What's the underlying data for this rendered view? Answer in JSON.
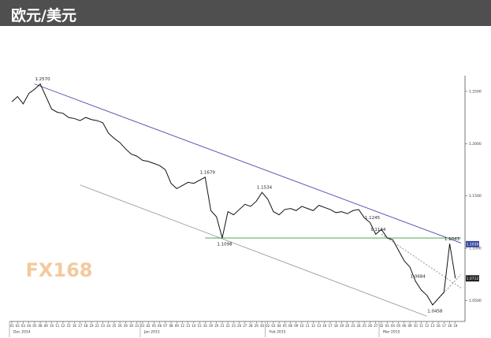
{
  "chart_data": {
    "type": "line",
    "title": "欧元/美元",
    "watermark": "FX168",
    "x": [
      0,
      1,
      2,
      3,
      4,
      5,
      6,
      7,
      8,
      9,
      10,
      11,
      12,
      13,
      14,
      15,
      16,
      17,
      18,
      19,
      20,
      21,
      22,
      23,
      24,
      25,
      26,
      27,
      28,
      29,
      30,
      31,
      32,
      33,
      34,
      35,
      36,
      37,
      38,
      39,
      40,
      41,
      42,
      43,
      44,
      45,
      46,
      47,
      48,
      49,
      50,
      51,
      52,
      53,
      54,
      55,
      56,
      57,
      58,
      59,
      60,
      61,
      62,
      63,
      64,
      65,
      66,
      67,
      68,
      69,
      70,
      71,
      72,
      73,
      74,
      75,
      76,
      77,
      78
    ],
    "series": [
      {
        "name": "EUR/USD",
        "color": "#111111",
        "values": [
          1.24,
          1.245,
          1.238,
          1.248,
          1.252,
          1.257,
          1.245,
          1.233,
          1.23,
          1.229,
          1.225,
          1.224,
          1.222,
          1.225,
          1.223,
          1.222,
          1.22,
          1.21,
          1.205,
          1.201,
          1.195,
          1.19,
          1.188,
          1.184,
          1.183,
          1.181,
          1.179,
          1.175,
          1.162,
          1.157,
          1.16,
          1.163,
          1.162,
          1.165,
          1.1679,
          1.136,
          1.13,
          1.1098,
          1.135,
          1.132,
          1.137,
          1.142,
          1.14,
          1.145,
          1.1534,
          1.147,
          1.135,
          1.132,
          1.137,
          1.138,
          1.136,
          1.14,
          1.138,
          1.136,
          1.141,
          1.139,
          1.137,
          1.134,
          1.135,
          1.133,
          1.136,
          1.137,
          1.129,
          1.1245,
          1.1134,
          1.118,
          1.11,
          1.108,
          1.098,
          1.088,
          1.082,
          1.0684,
          1.06,
          1.055,
          1.0458,
          1.052,
          1.058,
          1.1043,
          1.0712
        ]
      }
    ],
    "xlim": [
      0,
      79
    ],
    "ylim": [
      1.03,
      1.265
    ],
    "yticks": [
      {
        "value": 1.25,
        "label": "1.2500"
      },
      {
        "value": 1.2,
        "label": "1.2000"
      },
      {
        "value": 1.15,
        "label": "1.1500"
      },
      {
        "value": 1.1,
        "label": "1.1000"
      },
      {
        "value": 1.05,
        "label": "1.0500"
      }
    ],
    "xticks": [
      {
        "value": 0,
        "label": "01"
      },
      {
        "value": 1,
        "label": "02"
      },
      {
        "value": 2,
        "label": "03"
      },
      {
        "value": 3,
        "label": "04"
      },
      {
        "value": 4,
        "label": "05"
      },
      {
        "value": 5,
        "label": "08"
      },
      {
        "value": 6,
        "label": "09"
      },
      {
        "value": 7,
        "label": "10"
      },
      {
        "value": 8,
        "label": "11"
      },
      {
        "value": 9,
        "label": "12"
      },
      {
        "value": 10,
        "label": "15"
      },
      {
        "value": 11,
        "label": "16"
      },
      {
        "value": 12,
        "label": "17"
      },
      {
        "value": 13,
        "label": "18"
      },
      {
        "value": 14,
        "label": "19"
      },
      {
        "value": 15,
        "label": "22"
      },
      {
        "value": 16,
        "label": "23"
      },
      {
        "value": 17,
        "label": "24"
      },
      {
        "value": 18,
        "label": "25"
      },
      {
        "value": 19,
        "label": "26"
      },
      {
        "value": 20,
        "label": "29"
      },
      {
        "value": 21,
        "label": "30"
      },
      {
        "value": 22,
        "label": "31"
      },
      {
        "value": 23,
        "label": "01"
      },
      {
        "value": 24,
        "label": "02"
      },
      {
        "value": 25,
        "label": "05"
      },
      {
        "value": 26,
        "label": "06"
      },
      {
        "value": 27,
        "label": "07"
      },
      {
        "value": 28,
        "label": "08"
      },
      {
        "value": 29,
        "label": "09"
      },
      {
        "value": 30,
        "label": "12"
      },
      {
        "value": 31,
        "label": "13"
      },
      {
        "value": 32,
        "label": "14"
      },
      {
        "value": 33,
        "label": "15"
      },
      {
        "value": 34,
        "label": "16"
      },
      {
        "value": 35,
        "label": "19"
      },
      {
        "value": 36,
        "label": "20"
      },
      {
        "value": 37,
        "label": "21"
      },
      {
        "value": 38,
        "label": "22"
      },
      {
        "value": 39,
        "label": "23"
      },
      {
        "value": 40,
        "label": "26"
      },
      {
        "value": 41,
        "label": "27"
      },
      {
        "value": 42,
        "label": "28"
      },
      {
        "value": 43,
        "label": "29"
      },
      {
        "value": 44,
        "label": "30"
      },
      {
        "value": 45,
        "label": "02"
      },
      {
        "value": 46,
        "label": "03"
      },
      {
        "value": 47,
        "label": "04"
      },
      {
        "value": 48,
        "label": "05"
      },
      {
        "value": 49,
        "label": "06"
      },
      {
        "value": 50,
        "label": "09"
      },
      {
        "value": 51,
        "label": "10"
      },
      {
        "value": 52,
        "label": "11"
      },
      {
        "value": 53,
        "label": "12"
      },
      {
        "value": 54,
        "label": "13"
      },
      {
        "value": 55,
        "label": "16"
      },
      {
        "value": 56,
        "label": "17"
      },
      {
        "value": 57,
        "label": "18"
      },
      {
        "value": 58,
        "label": "19"
      },
      {
        "value": 59,
        "label": "20"
      },
      {
        "value": 60,
        "label": "23"
      },
      {
        "value": 61,
        "label": "24"
      },
      {
        "value": 62,
        "label": "25"
      },
      {
        "value": 63,
        "label": "26"
      },
      {
        "value": 64,
        "label": "27"
      },
      {
        "value": 65,
        "label": "02"
      },
      {
        "value": 66,
        "label": "03"
      },
      {
        "value": 67,
        "label": "04"
      },
      {
        "value": 68,
        "label": "05"
      },
      {
        "value": 69,
        "label": "06"
      },
      {
        "value": 70,
        "label": "09"
      },
      {
        "value": 71,
        "label": "10"
      },
      {
        "value": 72,
        "label": "11"
      },
      {
        "value": 73,
        "label": "12"
      },
      {
        "value": 74,
        "label": "13"
      },
      {
        "value": 75,
        "label": "16"
      },
      {
        "value": 76,
        "label": "17"
      },
      {
        "value": 77,
        "label": "18"
      },
      {
        "value": 78,
        "label": "19"
      }
    ],
    "x_groups": [
      {
        "value": 0,
        "label": "Dec 2014"
      },
      {
        "value": 23,
        "label": "Jan 2015"
      },
      {
        "value": 45,
        "label": "Feb 2015"
      },
      {
        "value": 65,
        "label": "Mar 2015"
      }
    ],
    "annotations": [
      {
        "text": "1.2570",
        "x": 5,
        "y": 1.257
      },
      {
        "text": "1.1679",
        "x": 34,
        "y": 1.1679
      },
      {
        "text": "1.1098",
        "x": 37,
        "y": 1.1098
      },
      {
        "text": "1.1534",
        "x": 44,
        "y": 1.1534
      },
      {
        "text": "1.1245",
        "x": 63,
        "y": 1.1245
      },
      {
        "text": "1.1134",
        "x": 64,
        "y": 1.1134
      },
      {
        "text": "1.0684",
        "x": 71,
        "y": 1.0684
      },
      {
        "text": "1.0458",
        "x": 74,
        "y": 1.0458
      },
      {
        "text": "1.1043",
        "x": 77,
        "y": 1.1043
      }
    ],
    "lines": [
      {
        "color": "#4a4fae",
        "dash": false,
        "points": [
          [
            4,
            1.257
          ],
          [
            79,
            1.105
          ]
        ]
      },
      {
        "color": "#9a9aa8",
        "dash": false,
        "points": [
          [
            12,
            1.1605
          ],
          [
            73,
            1.035
          ]
        ]
      },
      {
        "color": "#3a9a3a",
        "dash": false,
        "points": [
          [
            34,
            1.1098
          ],
          [
            79,
            1.1098
          ]
        ]
      },
      {
        "color": "#888888",
        "dash": true,
        "points": [
          [
            65,
            1.1134
          ],
          [
            79,
            1.062
          ]
        ]
      },
      {
        "color": "#888888",
        "dash": true,
        "points": [
          [
            74,
            1.0458
          ],
          [
            79,
            1.075
          ]
        ]
      }
    ],
    "price_markers": [
      {
        "value": 1.1039,
        "label": "1.1039",
        "color": "#3a4aa0"
      },
      {
        "value": 1.0712,
        "label": "1.0712",
        "color": "#222222"
      }
    ]
  }
}
